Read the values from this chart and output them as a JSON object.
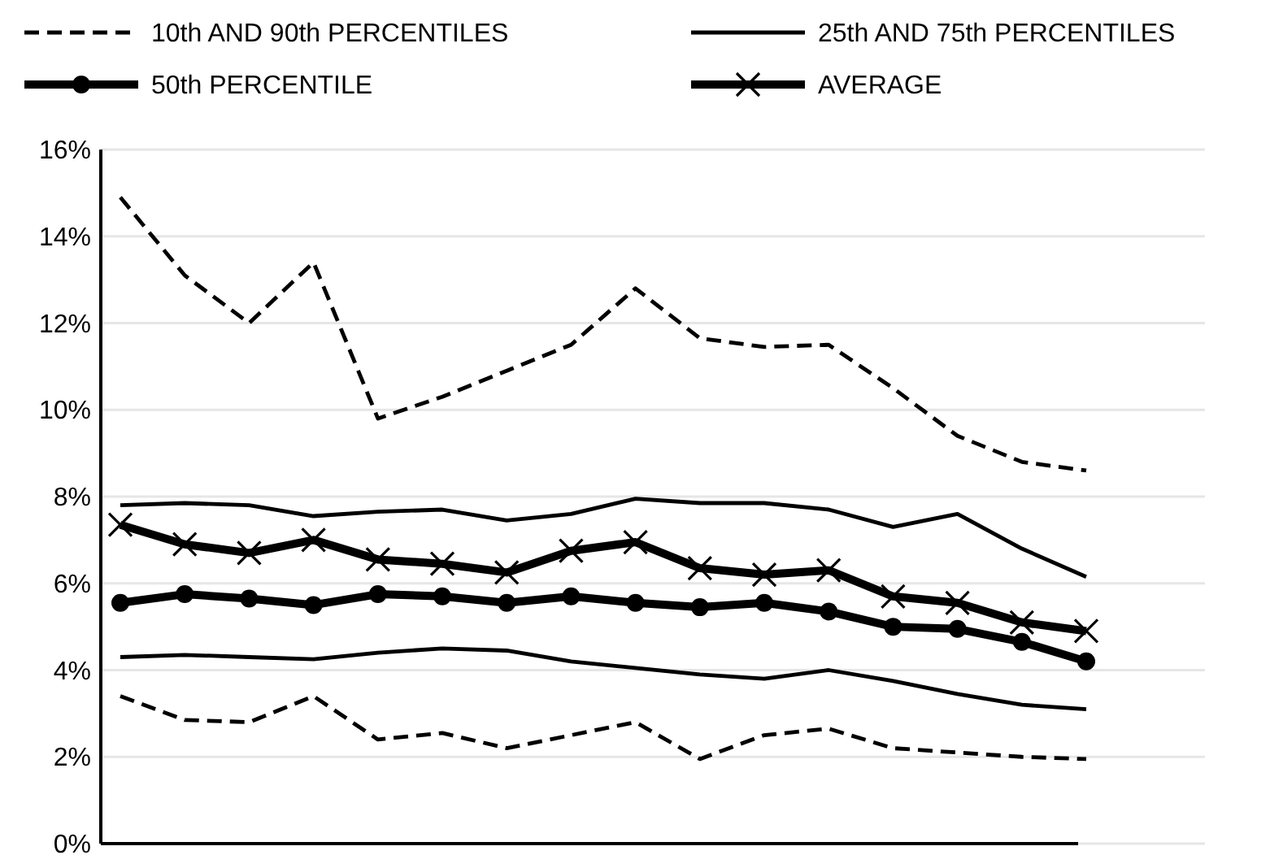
{
  "chart_data": {
    "type": "line",
    "categories": [
      null,
      null,
      null,
      null,
      null,
      null,
      null,
      null,
      null,
      null,
      null,
      null,
      null,
      null,
      null,
      null
    ],
    "ylim": [
      0,
      16
    ],
    "yticks": [
      {
        "value": 0,
        "label": "0%"
      },
      {
        "value": 2,
        "label": "2%"
      },
      {
        "value": 4,
        "label": "4%"
      },
      {
        "value": 6,
        "label": "6%"
      },
      {
        "value": 8,
        "label": "8%"
      },
      {
        "value": 10,
        "label": "10%"
      },
      {
        "value": 12,
        "label": "12%"
      },
      {
        "value": 14,
        "label": "14%"
      },
      {
        "value": 16,
        "label": "16%"
      }
    ],
    "grid": "y",
    "legend": "top",
    "marker": "none",
    "line_style": "solid",
    "series": [
      {
        "name": "10th AND 90th PERCENTILES",
        "color": "#000000",
        "line_style": "dashed",
        "values": [
          3.4,
          2.85,
          2.8,
          3.4,
          2.4,
          2.55,
          2.2,
          2.5,
          2.8,
          1.95,
          2.5,
          2.65,
          2.2,
          2.1,
          2.0,
          1.95
        ]
      },
      {
        "name": "25th AND 75th PERCENTILES",
        "color": "#000000",
        "values": [
          7.8,
          7.85,
          7.8,
          7.55,
          7.65,
          7.7,
          7.45,
          7.6,
          7.95,
          7.85,
          7.85,
          7.7,
          7.3,
          7.6,
          6.8,
          6.15
        ]
      },
      {
        "name": "50th PERCENTILE",
        "color": "#000000",
        "marker": "circle",
        "values": [
          5.55,
          5.75,
          5.65,
          5.5,
          5.75,
          5.7,
          5.55,
          5.7,
          5.55,
          5.45,
          5.55,
          5.35,
          5.0,
          4.95,
          4.65,
          4.2
        ]
      },
      {
        "name": "AVERAGE",
        "color": "#000000",
        "marker": "cross",
        "values": [
          7.35,
          6.9,
          6.7,
          7.0,
          6.55,
          6.45,
          6.25,
          6.75,
          6.95,
          6.35,
          6.2,
          6.3,
          5.7,
          5.55,
          5.1,
          4.9
        ]
      },
      {
        "color": "#000000",
        "line_style": "dashed",
        "values": [
          14.9,
          13.1,
          12.0,
          13.4,
          9.8,
          10.3,
          10.9,
          11.5,
          12.8,
          11.65,
          11.45,
          11.5,
          10.5,
          9.4,
          8.8,
          8.6
        ]
      },
      {
        "color": "#000000",
        "values": [
          4.3,
          4.35,
          4.3,
          4.25,
          4.4,
          4.5,
          4.45,
          4.2,
          4.05,
          3.9,
          3.8,
          4.0,
          3.75,
          3.45,
          3.2,
          3.1
        ]
      }
    ]
  }
}
